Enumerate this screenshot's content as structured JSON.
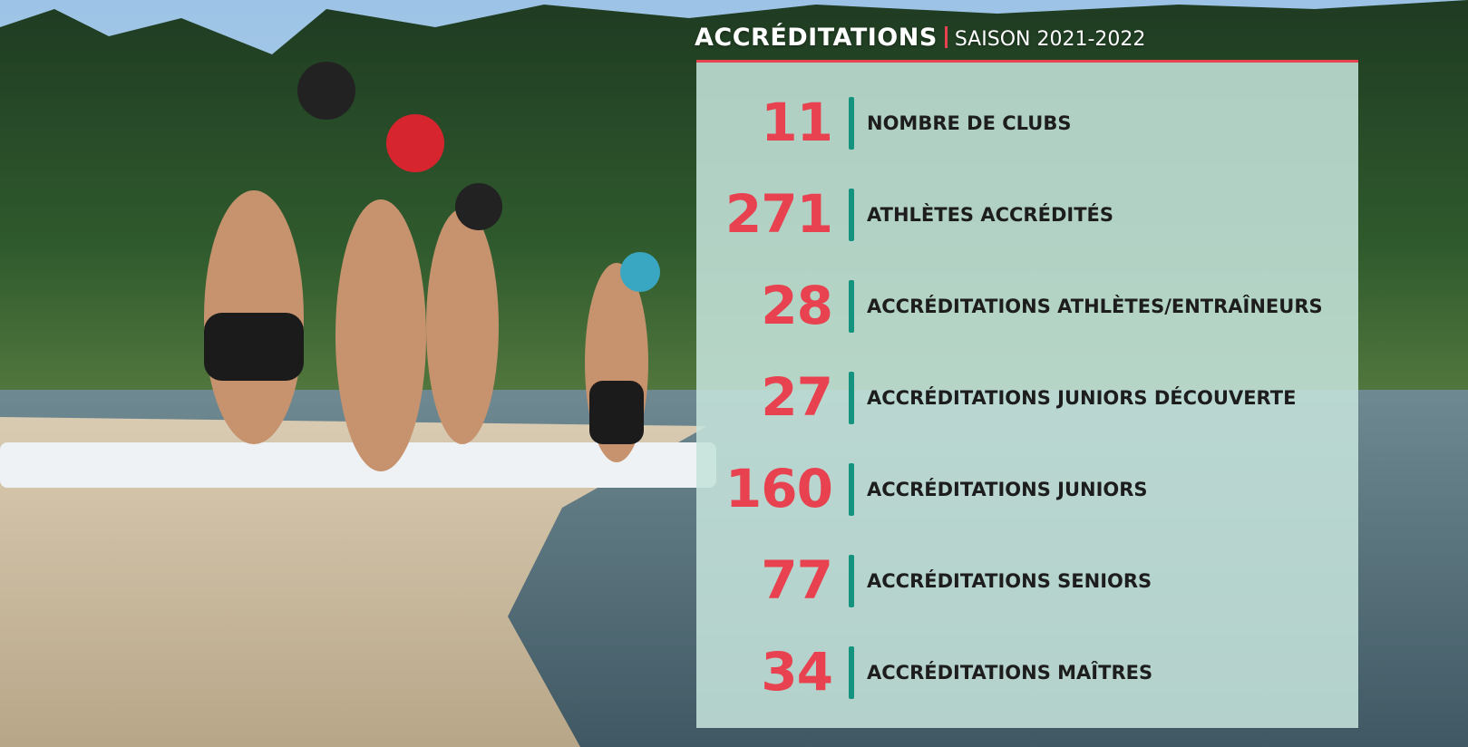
{
  "header": {
    "title": "ACCRÉDITATIONS",
    "subtitle": "SAISON 2021-2022"
  },
  "stats": [
    {
      "number": 11,
      "label": "NOMBRE DE CLUBS"
    },
    {
      "number": 271,
      "label": "ATHLÈTES ACCRÉDITÉS"
    },
    {
      "number": 28,
      "label": "ACCRÉDITATIONS ATHLÈTES/ENTRAÎNEURS"
    },
    {
      "number": 27,
      "label": "ACCRÉDITATIONS JUNIORS DÉCOUVERTE"
    },
    {
      "number": 160,
      "label": "ACCRÉDITATIONS JUNIORS"
    },
    {
      "number": 77,
      "label": "ACCRÉDITATIONS SENIORS"
    },
    {
      "number": 34,
      "label": "ACCRÉDITATIONS MAÎTRES"
    }
  ]
}
